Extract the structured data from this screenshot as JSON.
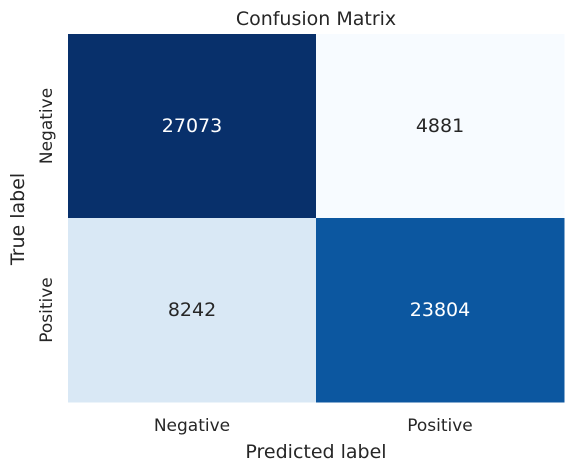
{
  "chart_data": {
    "type": "heatmap",
    "title": "Confusion Matrix",
    "xlabel": "Predicted label",
    "ylabel": "True label",
    "x_categories": [
      "Negative",
      "Positive"
    ],
    "y_categories": [
      "Negative",
      "Positive"
    ],
    "values": [
      [
        27073,
        4881
      ],
      [
        8242,
        23804
      ]
    ],
    "colormap": "Blues",
    "colorbar": false,
    "grid": false
  }
}
